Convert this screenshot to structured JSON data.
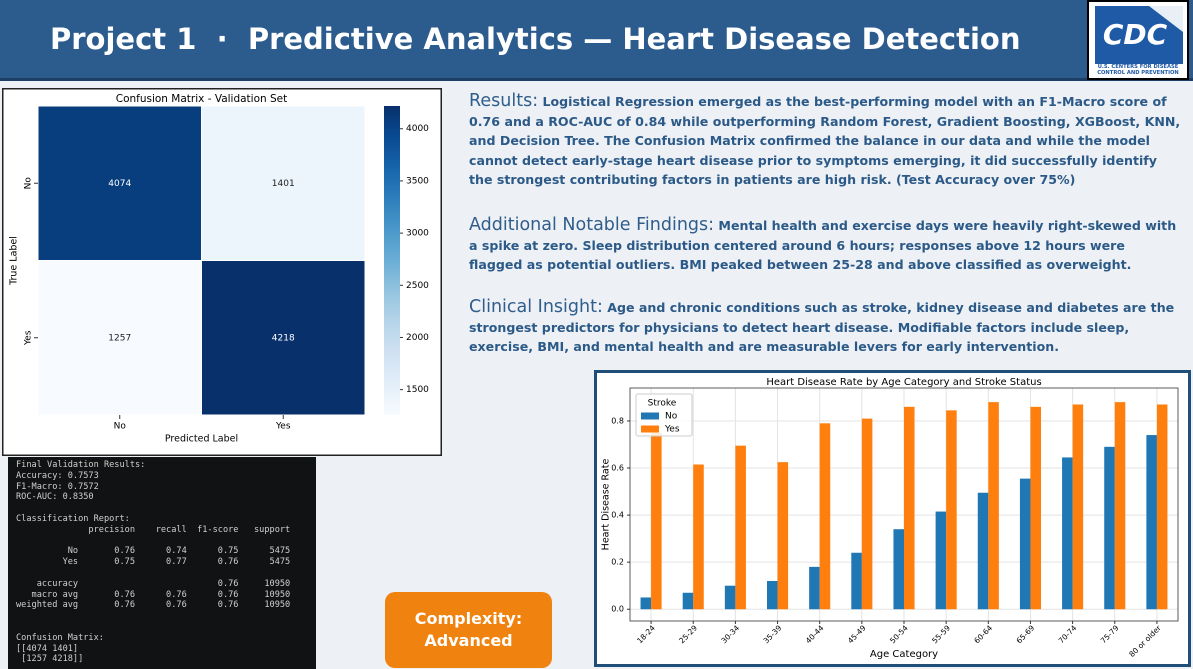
{
  "header": {
    "title": "Project 1  ·  Predictive Analytics — Heart Disease Detection"
  },
  "logo": {
    "name": "CDC",
    "subtitle": "U.S. CENTERS FOR DISEASE CONTROL AND PREVENTION"
  },
  "findings": [
    {
      "heading": "Results:",
      "body": "Logistical Regression emerged as the best-performing model with an F1-Macro score of 0.76 and a ROC-AUC of 0.84 while outperforming Random Forest, Gradient Boosting, XGBoost, KNN, and Decision Tree.  The Confusion Matrix confirmed the balance in our data and while the model cannot detect early-stage heart disease prior to symptoms emerging, it did successfully identify the strongest contributing factors in patients are high risk. (Test Accuracy over 75%)"
    },
    {
      "heading": "Additional Notable Findings:",
      "body": "Mental health and exercise days were heavily right-skewed with a spike at zero. Sleep distribution centered around 6 hours; responses above 12 hours were flagged as potential outliers. BMI peaked between 25-28 and above classified as overweight."
    },
    {
      "heading": "Clinical Insight:",
      "body": "Age and chronic conditions such as stroke, kidney disease and diabetes are the strongest predictors for physicians to detect heart disease. Modifiable factors include sleep, exercise, BMI, and mental health and are measurable levers for early intervention."
    }
  ],
  "console": "Final Validation Results:\nAccuracy: 0.7573\nF1-Macro: 0.7572\nROC-AUC: 0.8350\n\nClassification Report:\n              precision    recall  f1-score   support\n\n          No       0.76      0.74      0.75      5475\n         Yes       0.75      0.77      0.76      5475\n\n    accuracy                           0.76     10950\n   macro avg       0.76      0.76      0.76     10950\nweighted avg       0.76      0.76      0.76     10950\n\n\nConfusion Matrix:\n[[4074 1401]\n [1257 4218]]",
  "badge": {
    "lines": [
      "Complexity:",
      "Advanced"
    ]
  },
  "chart_data": [
    {
      "type": "heatmap",
      "title": "Confusion Matrix - Validation Set",
      "x_label": "Predicted Label",
      "y_label": "True Label",
      "x_categories": [
        "No",
        "Yes"
      ],
      "y_categories": [
        "No",
        "Yes"
      ],
      "values": [
        [
          4074,
          1401
        ],
        [
          1257,
          4218
        ]
      ],
      "colormap": "Blues",
      "clim": [
        1257,
        4218
      ],
      "colorbar_ticks": [
        1500,
        2000,
        2500,
        3000,
        3500,
        4000
      ]
    },
    {
      "type": "bar",
      "title": "Heart Disease Rate by Age Category and Stroke Status",
      "x_label": "Age Category",
      "y_label": "Heart Disease Rate",
      "categories": [
        "18-24",
        "25-29",
        "30-34",
        "35-39",
        "40-44",
        "45-49",
        "50-54",
        "55-59",
        "60-64",
        "65-69",
        "70-74",
        "75-79",
        "80 or older"
      ],
      "legend_title": "Stroke",
      "legend": "upper left",
      "grid": true,
      "series": [
        {
          "name": "No",
          "color": "#1f77b4",
          "values": [
            0.05,
            0.07,
            0.1,
            0.12,
            0.18,
            0.24,
            0.34,
            0.415,
            0.495,
            0.555,
            0.645,
            0.69,
            0.74
          ]
        },
        {
          "name": "Yes",
          "color": "#ff7f0e",
          "values": [
            0.75,
            0.615,
            0.695,
            0.625,
            0.79,
            0.81,
            0.86,
            0.845,
            0.88,
            0.86,
            0.87,
            0.88,
            0.87
          ]
        }
      ],
      "ylim": [
        -0.05,
        0.94
      ],
      "yticks": [
        {
          "value": 0,
          "label": "0.0"
        },
        0.2,
        0.4,
        0.6,
        0.8
      ]
    }
  ]
}
